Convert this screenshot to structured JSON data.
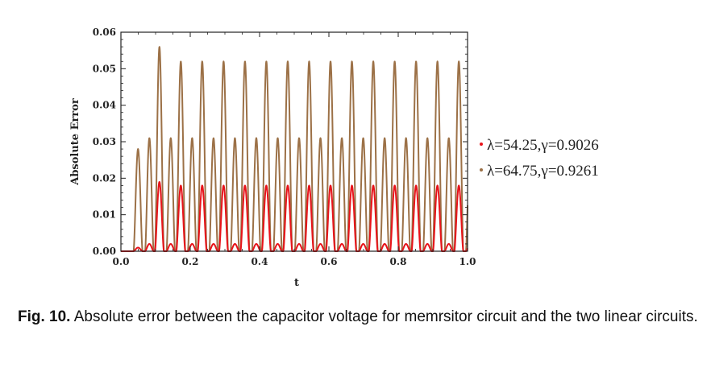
{
  "chart_data": {
    "type": "line",
    "xlabel": "t",
    "ylabel": "Absolute Error",
    "xlim": [
      0.0,
      1.0
    ],
    "ylim": [
      0.0,
      0.06
    ],
    "x_ticks": [
      "0.0",
      "0.2",
      "0.4",
      "0.6",
      "0.8",
      "1.0"
    ],
    "y_ticks": [
      "0.00",
      "0.01",
      "0.02",
      "0.03",
      "0.04",
      "0.05",
      "0.06"
    ],
    "grid": false,
    "legend_position": "right",
    "period": 0.0617,
    "series": [
      {
        "name": "λ=54.25,γ=0.9026",
        "color": "#9c7147",
        "peaks": [
          0.028,
          0.056,
          0.052,
          0.052,
          0.052,
          0.052,
          0.052,
          0.052,
          0.052,
          0.052,
          0.052,
          0.052,
          0.052,
          0.052,
          0.052,
          0.052,
          0.052
        ],
        "secondary_peaks": [
          0.0,
          0.031,
          0.031,
          0.031,
          0.031,
          0.031,
          0.031,
          0.031,
          0.031,
          0.031,
          0.031,
          0.031,
          0.031,
          0.031,
          0.031,
          0.031,
          0.031
        ]
      },
      {
        "name": "λ=64.75,γ=0.9261",
        "color": "#e8131a",
        "peaks": [
          0.001,
          0.019,
          0.018,
          0.018,
          0.018,
          0.018,
          0.018,
          0.018,
          0.018,
          0.018,
          0.018,
          0.018,
          0.018,
          0.018,
          0.018,
          0.018,
          0.018
        ],
        "secondary_peaks": [
          0.0,
          0.002,
          0.002,
          0.002,
          0.002,
          0.002,
          0.002,
          0.002,
          0.002,
          0.002,
          0.002,
          0.002,
          0.002,
          0.002,
          0.002,
          0.002,
          0.002
        ]
      }
    ]
  },
  "caption": {
    "label": "Fig. 10.",
    "text": " Absolute error between the capacitor voltage for memrsitor circuit and the two linear circuits."
  }
}
